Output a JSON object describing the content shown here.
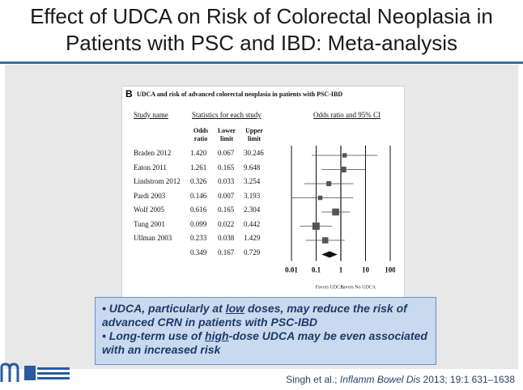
{
  "title_line1": "Effect of UDCA on Risk of Colorectal Neoplasia in",
  "title_line2": "Patients with PSC and IBD: Meta-analysis",
  "figure": {
    "letter": "B",
    "title": "UDCA and risk of advanced colorectal neoplasia in patients with PSC-IBD",
    "col_study": "Study name",
    "col_stats": "Statistics for each study",
    "col_plot": "Odds ratio and 95% CI",
    "sub_or": [
      "Odds",
      "ratio"
    ],
    "sub_lower": [
      "Lower",
      "limit"
    ],
    "sub_upper": [
      "Upper",
      "limit"
    ]
  },
  "chart_data": {
    "type": "forest",
    "x_scale": "log",
    "xlim": [
      0.01,
      100
    ],
    "x_ticks": [
      "0.01",
      "0.1",
      "1",
      "10",
      "100"
    ],
    "footer_left": "Favors UDCA",
    "footer_right": "Favors No UDCA",
    "studies": [
      {
        "name": "Braden 2012",
        "or": "1.420",
        "lower": "0.067",
        "upper": "30.246",
        "or_v": 1.42,
        "lo_v": 0.067,
        "hi_v": 30.246,
        "weight": 0.35
      },
      {
        "name": "Eaton 2011",
        "or": "1.261",
        "lower": "0.165",
        "upper": "9.648",
        "or_v": 1.261,
        "lo_v": 0.165,
        "hi_v": 9.648,
        "weight": 0.6
      },
      {
        "name": "Lindstrom 2012",
        "or": "0.326",
        "lower": "0.033",
        "upper": "3.254",
        "or_v": 0.326,
        "lo_v": 0.033,
        "hi_v": 3.254,
        "weight": 0.45
      },
      {
        "name": "Pardi 2003",
        "or": "0.146",
        "lower": "0.007",
        "upper": "3.193",
        "or_v": 0.146,
        "lo_v": 0.007,
        "hi_v": 3.193,
        "weight": 0.35
      },
      {
        "name": "Wolf 2005",
        "or": "0.616",
        "lower": "0.165",
        "upper": "2.304",
        "or_v": 0.616,
        "lo_v": 0.165,
        "hi_v": 2.304,
        "weight": 0.8
      },
      {
        "name": "Tung 2001",
        "or": "0.099",
        "lower": "0.022",
        "upper": "0.442",
        "or_v": 0.099,
        "lo_v": 0.022,
        "hi_v": 0.442,
        "weight": 0.85
      },
      {
        "name": "Ullman 2003",
        "or": "0.233",
        "lower": "0.038",
        "upper": "1.429",
        "or_v": 0.233,
        "lo_v": 0.038,
        "hi_v": 1.429,
        "weight": 0.65
      }
    ],
    "pooled": {
      "or": "0.349",
      "lower": "0.167",
      "upper": "0.729",
      "or_v": 0.349,
      "lo_v": 0.167,
      "hi_v": 0.729
    }
  },
  "notes": {
    "b1_part1": "UDCA, particularly at ",
    "b1_emph": "low",
    "b1_part2": " doses, may reduce the risk of advanced CRN in patients with PSC-IBD",
    "b2_part1": "Long-term use of ",
    "b2_emph": "high",
    "b2_part2": "-dose UDCA may be even associated with an increased risk"
  },
  "citation": {
    "authors": "Singh et al.; ",
    "journal": "Inflamm Bowel Dis",
    "rest": " 2013; 19:1 631–1638"
  }
}
